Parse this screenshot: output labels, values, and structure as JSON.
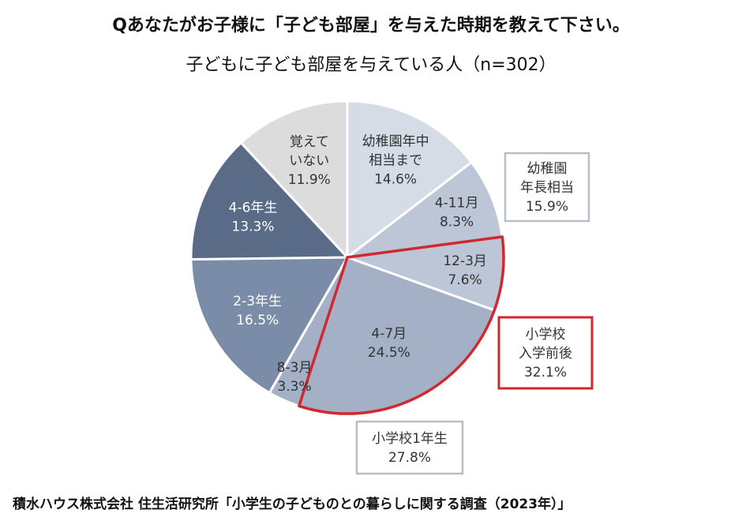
{
  "title": "Qあなたがお子様に「子ども部屋」を与えた時期を教えて下さい。",
  "subtitle": "子どもに子ども部屋を与えている人（n=302）",
  "footer": "積水ハウス株式会社 住生活研究所「小学生の子どものとの暮らしに関する調査（2023年）」",
  "chart_data": {
    "type": "pie",
    "title": "子どもに子ども部屋を与えている人（n=302）",
    "unit": "%",
    "slices": [
      {
        "label": [
          "幼稚園年中",
          "相当まで"
        ],
        "value": 14.6,
        "color": "#d6dce6"
      },
      {
        "label": [
          "4-11月"
        ],
        "value": 8.3,
        "color": "#bcc6d6"
      },
      {
        "label": [
          "12-3月"
        ],
        "value": 7.6,
        "color": "#bcc6d6"
      },
      {
        "label": [
          "4-7月"
        ],
        "value": 24.5,
        "color": "#a3b0c6"
      },
      {
        "label": [
          "8-3月"
        ],
        "value": 3.3,
        "color": "#a3b0c6"
      },
      {
        "label": [
          "2-3年生"
        ],
        "value": 16.5,
        "color": "#7b8ca8"
      },
      {
        "label": [
          "4-6年生"
        ],
        "value": 13.3,
        "color": "#5a6b88"
      },
      {
        "label": [
          "覚えて",
          "いない"
        ],
        "value": 11.9,
        "color": "#dcdcdc"
      }
    ],
    "value_labels": [
      "14.6%",
      "8.3%",
      "7.6%",
      "24.5%",
      "3.3%",
      "16.5%",
      "13.3%",
      "11.9%"
    ],
    "group_labels": [
      {
        "lines": [
          "幼稚園",
          "年長相当",
          "15.9%"
        ],
        "border": "#b8bec8"
      },
      {
        "lines": [
          "小学校",
          "入学前後",
          "32.1%"
        ],
        "border": "#d0282e"
      },
      {
        "lines": [
          "小学校1年生",
          "27.8%"
        ],
        "border": "#b8bec8"
      }
    ],
    "highlight": {
      "from_slice": 2,
      "to_slice": 3,
      "color": "#d0282e"
    }
  }
}
